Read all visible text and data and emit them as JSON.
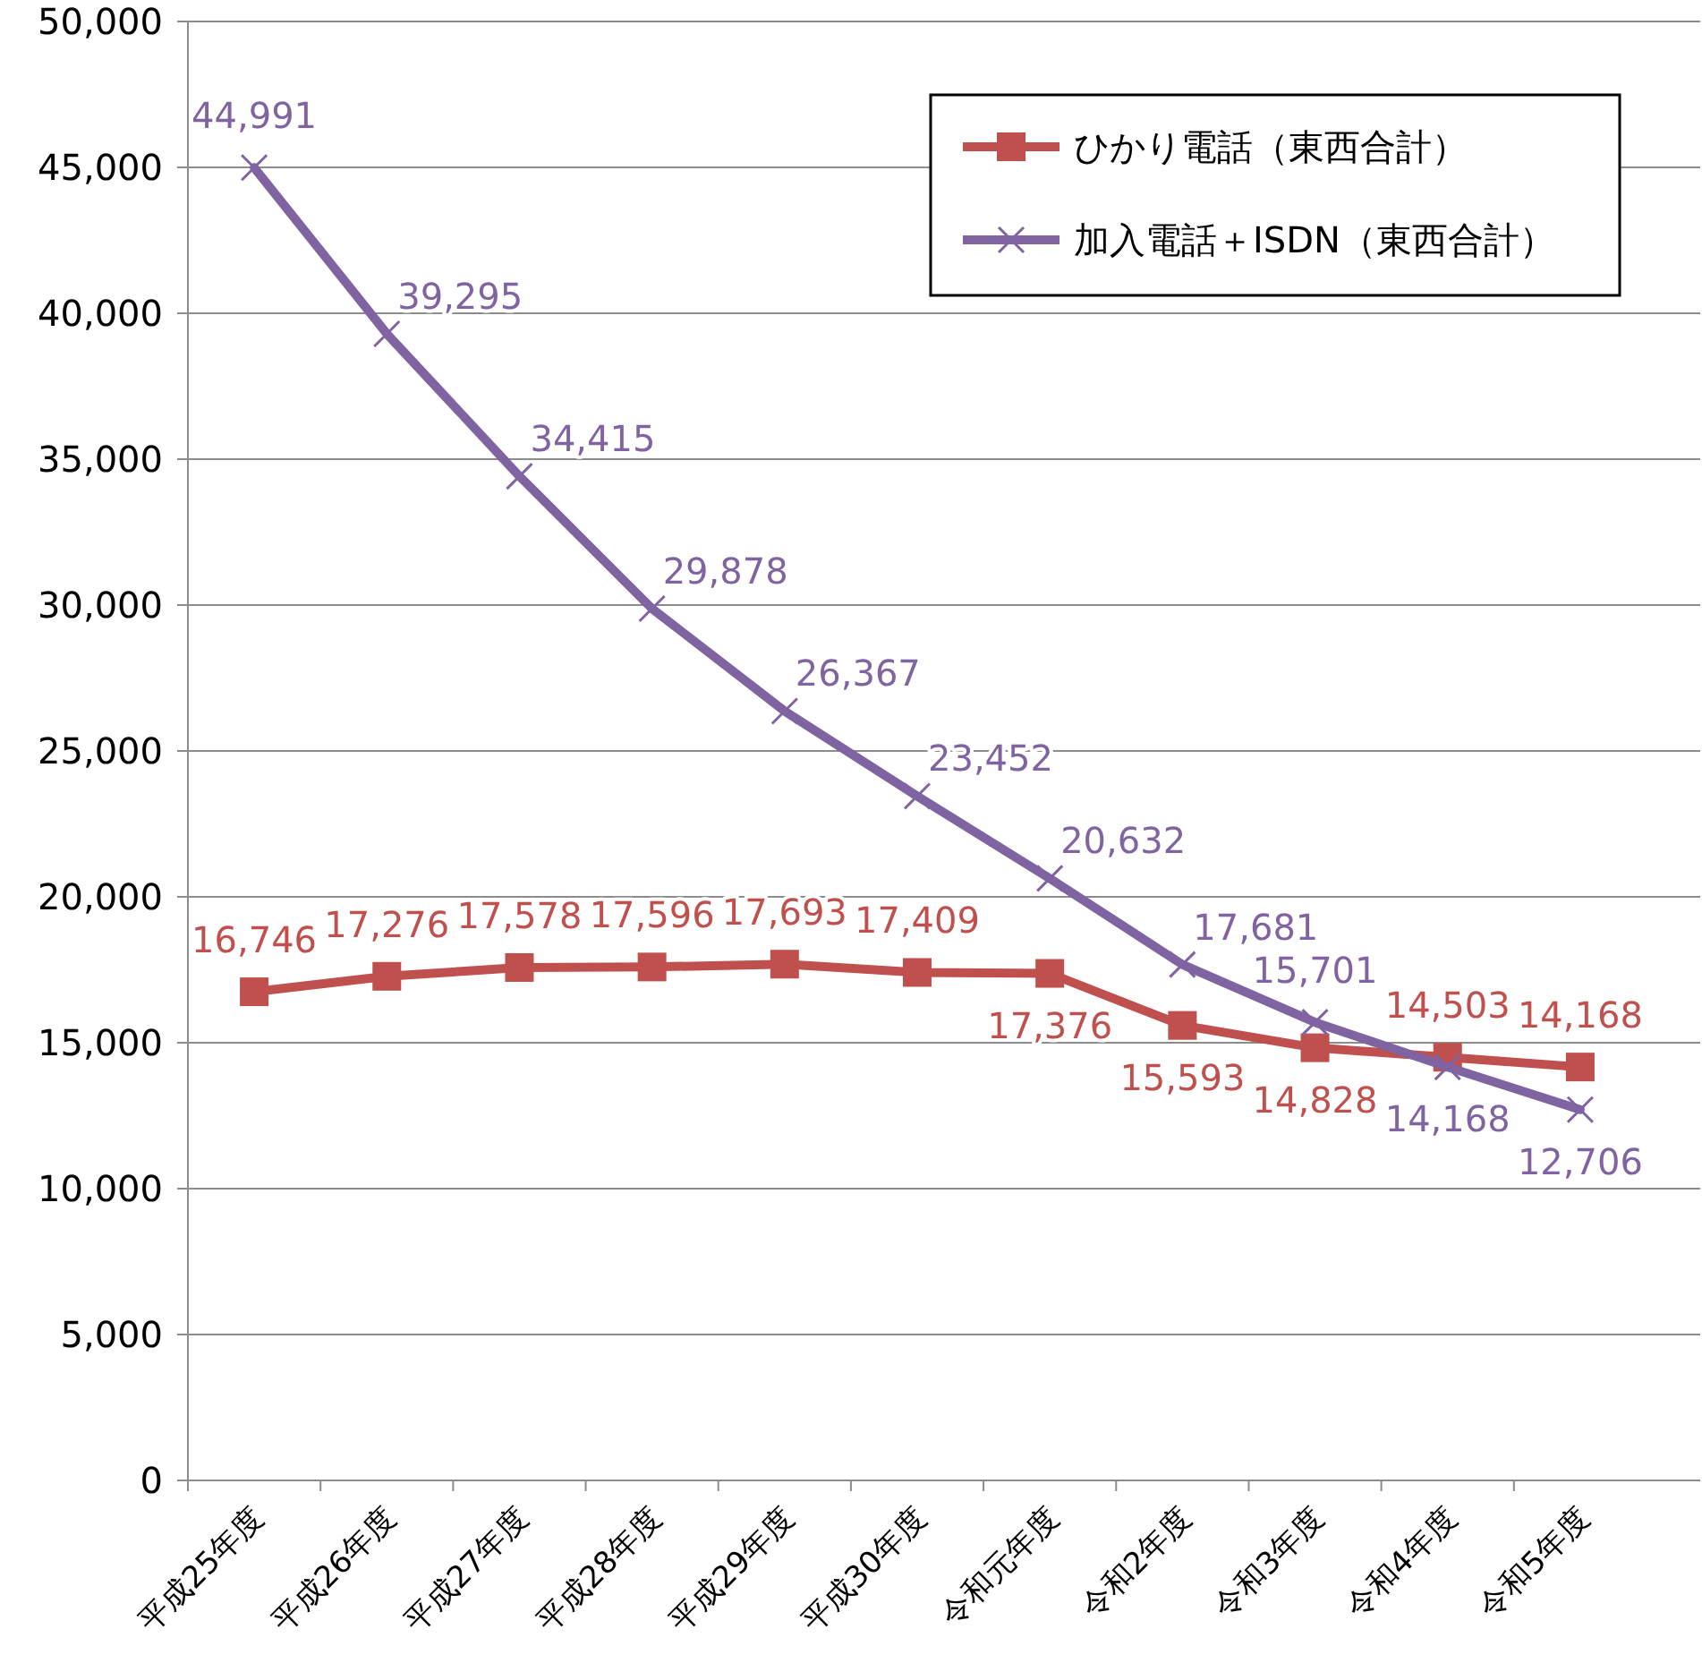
{
  "chart_data": {
    "type": "line",
    "categories": [
      "平成25年度",
      "平成26年度",
      "平成27年度",
      "平成28年度",
      "平成29年度",
      "平成30年度",
      "令和元年度",
      "令和2年度",
      "令和3年度",
      "令和4年度",
      "令和5年度"
    ],
    "series": [
      {
        "name": "ひかり電話（東西合計）",
        "color": "#c0504d",
        "marker": "square",
        "values": [
          16746,
          17276,
          17578,
          17596,
          17693,
          17409,
          17376,
          15593,
          14828,
          14503,
          14168
        ],
        "value_labels": [
          "16,746",
          "17,276",
          "17,578",
          "17,596",
          "17,693",
          "17,409",
          "17,376",
          "15,593",
          "14,828",
          "14,503",
          "14,168"
        ]
      },
      {
        "name": "加入電話＋ISDN（東西合計）",
        "color": "#8064a2",
        "marker": "cross",
        "values": [
          44991,
          39295,
          34415,
          29878,
          26367,
          23452,
          20632,
          17681,
          15701,
          14168,
          12706
        ],
        "value_labels": [
          "44,991",
          "39,295",
          "34,415",
          "29,878",
          "26,367",
          "23,452",
          "20,632",
          "17,681",
          "15,701",
          "14,168",
          "12,706"
        ]
      }
    ],
    "ylim": [
      0,
      50000
    ],
    "yticks": [
      {
        "value": 0,
        "label": "0"
      },
      {
        "value": 5000,
        "label": "5,000"
      },
      {
        "value": 10000,
        "label": "10,000"
      },
      {
        "value": 15000,
        "label": "15,000"
      },
      {
        "value": 20000,
        "label": "20,000"
      },
      {
        "value": 25000,
        "label": "25,000"
      },
      {
        "value": 30000,
        "label": "30,000"
      },
      {
        "value": 35000,
        "label": "35,000"
      },
      {
        "value": 40000,
        "label": "40,000"
      },
      {
        "value": 45000,
        "label": "45,000"
      },
      {
        "value": 50000,
        "label": "50,000"
      }
    ],
    "grid": "y",
    "legend": "top right"
  }
}
